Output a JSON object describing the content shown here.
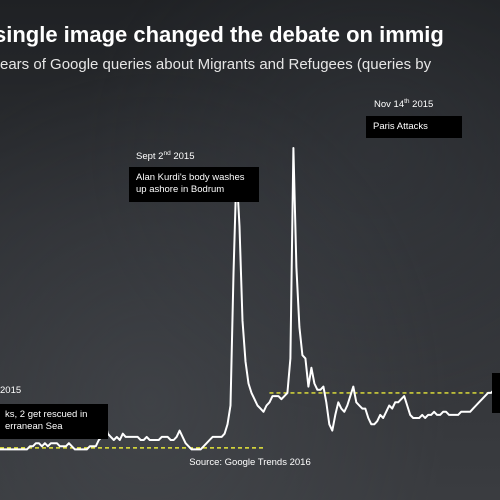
{
  "header": {
    "title": "single image changed the debate on immig",
    "subtitle": "ears of Google queries about Migrants and Refugees (queries by"
  },
  "annotations": {
    "left_date": "2015",
    "left_note_line1": "ks, 2 get rescued in",
    "left_note_line2": "erranean Sea",
    "sept_date_main": "Sept 2",
    "sept_date_sup": "nd",
    "sept_date_year": " 2015",
    "sept_note_line1": "Alan Kurdi's body washes",
    "sept_note_line2": "up ashore in Bodrum",
    "nov_date_main": "Nov 14",
    "nov_date_sup": "th",
    "nov_date_year": " 2015",
    "nov_note": "Paris Attacks"
  },
  "footer": {
    "source": "Source: Google Trends 2016"
  },
  "colors": {
    "line": "#ffffff",
    "average_line": "#e8e83a",
    "note_background": "#000000"
  },
  "chart_data": {
    "type": "line",
    "x": [
      0,
      1,
      2,
      3,
      4,
      5,
      6,
      7,
      8,
      9,
      10,
      11,
      12,
      13,
      14,
      15,
      16,
      17,
      18,
      19,
      20,
      21,
      22,
      23,
      24,
      25,
      26,
      27,
      28,
      29,
      30,
      31,
      32,
      33,
      34,
      35,
      36,
      37,
      38,
      39,
      40,
      41,
      42,
      43,
      44,
      45,
      46,
      47,
      48,
      49,
      50,
      51,
      52,
      53,
      54,
      55,
      56,
      57,
      58,
      59,
      60,
      61,
      62,
      63,
      64,
      65,
      66,
      67,
      68,
      69,
      70,
      71,
      72,
      73,
      74,
      75,
      76,
      77,
      78,
      79,
      80,
      81,
      82,
      83,
      84,
      85,
      86,
      87,
      88,
      89,
      90,
      91,
      92,
      93,
      94,
      95,
      96,
      97,
      98,
      99,
      100,
      101,
      102,
      103,
      104,
      105,
      106,
      107,
      108,
      109,
      110,
      111,
      112,
      113,
      114,
      115,
      116,
      117,
      118,
      119,
      120,
      121,
      122,
      123,
      124,
      125,
      126,
      127,
      128,
      129,
      130,
      131,
      132,
      133,
      134,
      135,
      136,
      137,
      138,
      139,
      140,
      141,
      142,
      143,
      144,
      145,
      146,
      147,
      148,
      149,
      150,
      151,
      152,
      153,
      154,
      155,
      156,
      157,
      158,
      159,
      160,
      161,
      162,
      163,
      164,
      165,
      166,
      167
    ],
    "y": [
      4,
      4,
      4,
      4,
      4,
      4,
      4,
      4,
      4,
      4,
      5,
      5,
      6,
      6,
      5,
      6,
      5,
      6,
      6,
      6,
      5,
      5,
      5,
      6,
      5,
      4,
      4,
      4,
      4,
      4,
      5,
      5,
      5,
      7,
      8,
      13,
      9,
      8,
      7,
      8,
      7,
      9,
      8,
      8,
      8,
      8,
      8,
      7,
      7,
      8,
      7,
      7,
      7,
      7,
      8,
      8,
      8,
      7,
      7,
      8,
      10,
      8,
      6,
      5,
      4,
      4,
      4,
      4,
      5,
      6,
      7,
      8,
      8,
      8,
      8,
      9,
      12,
      18,
      60,
      93,
      75,
      45,
      32,
      25,
      22,
      20,
      18,
      17,
      16,
      18,
      19,
      21,
      21,
      21,
      20,
      21,
      22,
      33,
      100,
      62,
      43,
      34,
      33,
      24,
      30,
      25,
      23,
      23,
      24,
      19,
      12,
      10,
      15,
      19,
      17,
      16,
      18,
      21,
      24,
      19,
      18,
      17,
      17,
      14,
      12,
      12,
      13,
      15,
      14,
      16,
      18,
      17,
      19,
      19,
      20,
      21,
      18,
      15,
      14,
      14,
      14,
      15,
      14,
      15,
      15,
      16,
      15,
      15,
      16,
      16,
      15,
      15,
      15,
      15,
      16,
      16,
      16,
      16,
      17,
      18,
      19,
      20,
      21,
      22,
      22,
      23,
      24,
      25
    ],
    "ylim": [
      0,
      100
    ],
    "series": [
      {
        "name": "",
        "role": "queries",
        "color": "#ffffff"
      }
    ],
    "averages": [
      {
        "from_x": 0,
        "to_x": 88,
        "value": 4.5
      },
      {
        "from_x": 90,
        "to_x": 167,
        "value": 22
      }
    ],
    "grid": false,
    "legend": "none"
  }
}
